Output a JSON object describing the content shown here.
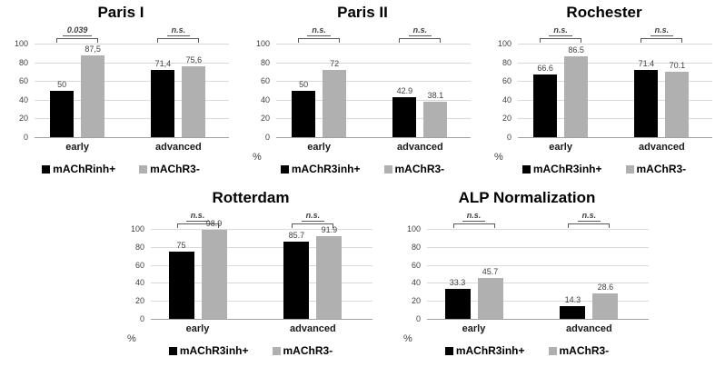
{
  "colors": {
    "bar_black": "#000000",
    "bar_gray": "#b0b0b0",
    "gridline": "#d9d9d9",
    "zero_axis": "#a0a0a0",
    "bracket": "#595959",
    "small_text": "#3f3f3f",
    "title_text": "#000000"
  },
  "chart_data": [
    {
      "type": "bar",
      "title": "Paris I",
      "categories": [
        "early",
        "advanced"
      ],
      "series": [
        {
          "name": "mAChRinh+",
          "color_key": "black",
          "values": [
            50,
            71.4
          ],
          "labels": [
            "50",
            "71,4"
          ]
        },
        {
          "name": "mAChR3-",
          "color_key": "gray",
          "values": [
            87.5,
            75.6
          ],
          "labels": [
            "87,5",
            "75,6"
          ]
        }
      ],
      "significance": [
        "0.039",
        "n.s."
      ],
      "yticks": [
        0,
        20,
        40,
        60,
        80,
        100
      ],
      "ylim": [
        0,
        100
      ],
      "percent_label": "",
      "grid": true,
      "legend_position": "bottom"
    },
    {
      "type": "bar",
      "title": "Paris II",
      "categories": [
        "early",
        "advanced"
      ],
      "series": [
        {
          "name": "mAChR3inh+",
          "color_key": "black",
          "values": [
            50,
            42.9
          ],
          "labels": [
            "50",
            "42.9"
          ]
        },
        {
          "name": "mAChR3-",
          "color_key": "gray",
          "values": [
            72,
            38.1
          ],
          "labels": [
            "72",
            "38.1"
          ]
        }
      ],
      "significance": [
        "n.s.",
        "n.s."
      ],
      "yticks": [
        0,
        20,
        40,
        60,
        80,
        100
      ],
      "ylim": [
        0,
        100
      ],
      "percent_label": "%",
      "grid": true,
      "legend_position": "bottom"
    },
    {
      "type": "bar",
      "title": "Rochester",
      "categories": [
        "early",
        "advanced"
      ],
      "series": [
        {
          "name": "mAChR3inh+",
          "color_key": "black",
          "values": [
            66.6,
            71.4
          ],
          "labels": [
            "66.6",
            "71.4"
          ]
        },
        {
          "name": "mAChR3-",
          "color_key": "gray",
          "values": [
            86.5,
            70.1
          ],
          "labels": [
            "86.5",
            "70.1"
          ]
        }
      ],
      "significance": [
        "n.s.",
        "n.s."
      ],
      "yticks": [
        0,
        20,
        40,
        60,
        80,
        100
      ],
      "ylim": [
        0,
        100
      ],
      "percent_label": "%",
      "grid": true,
      "legend_position": "bottom"
    },
    {
      "type": "bar",
      "title": "Rotterdam",
      "categories": [
        "early",
        "advanced"
      ],
      "series": [
        {
          "name": "mAChR3inh+",
          "color_key": "black",
          "values": [
            75,
            85.7
          ],
          "labels": [
            "75",
            "85.7"
          ]
        },
        {
          "name": "mAChR3-",
          "color_key": "gray",
          "values": [
            98.9,
            91.9
          ],
          "labels": [
            "98.9",
            "91.9"
          ]
        }
      ],
      "significance": [
        "n.s.",
        "n.s."
      ],
      "yticks": [
        0,
        20,
        40,
        60,
        80,
        100
      ],
      "ylim": [
        0,
        100
      ],
      "percent_label": "%",
      "grid": true,
      "legend_position": "bottom"
    },
    {
      "type": "bar",
      "title": "ALP Normalization",
      "categories": [
        "early",
        "advanced"
      ],
      "series": [
        {
          "name": "mAChR3inh+",
          "color_key": "black",
          "values": [
            33.3,
            14.3
          ],
          "labels": [
            "33.3",
            "14.3"
          ]
        },
        {
          "name": "mAChR3-",
          "color_key": "gray",
          "values": [
            45.7,
            28.6
          ],
          "labels": [
            "45.7",
            "28.6"
          ]
        }
      ],
      "significance": [
        "n.s.",
        "n.s."
      ],
      "yticks": [
        0,
        20,
        40,
        60,
        80,
        100
      ],
      "ylim": [
        0,
        100
      ],
      "percent_label": "%",
      "grid": true,
      "legend_position": "bottom"
    }
  ]
}
